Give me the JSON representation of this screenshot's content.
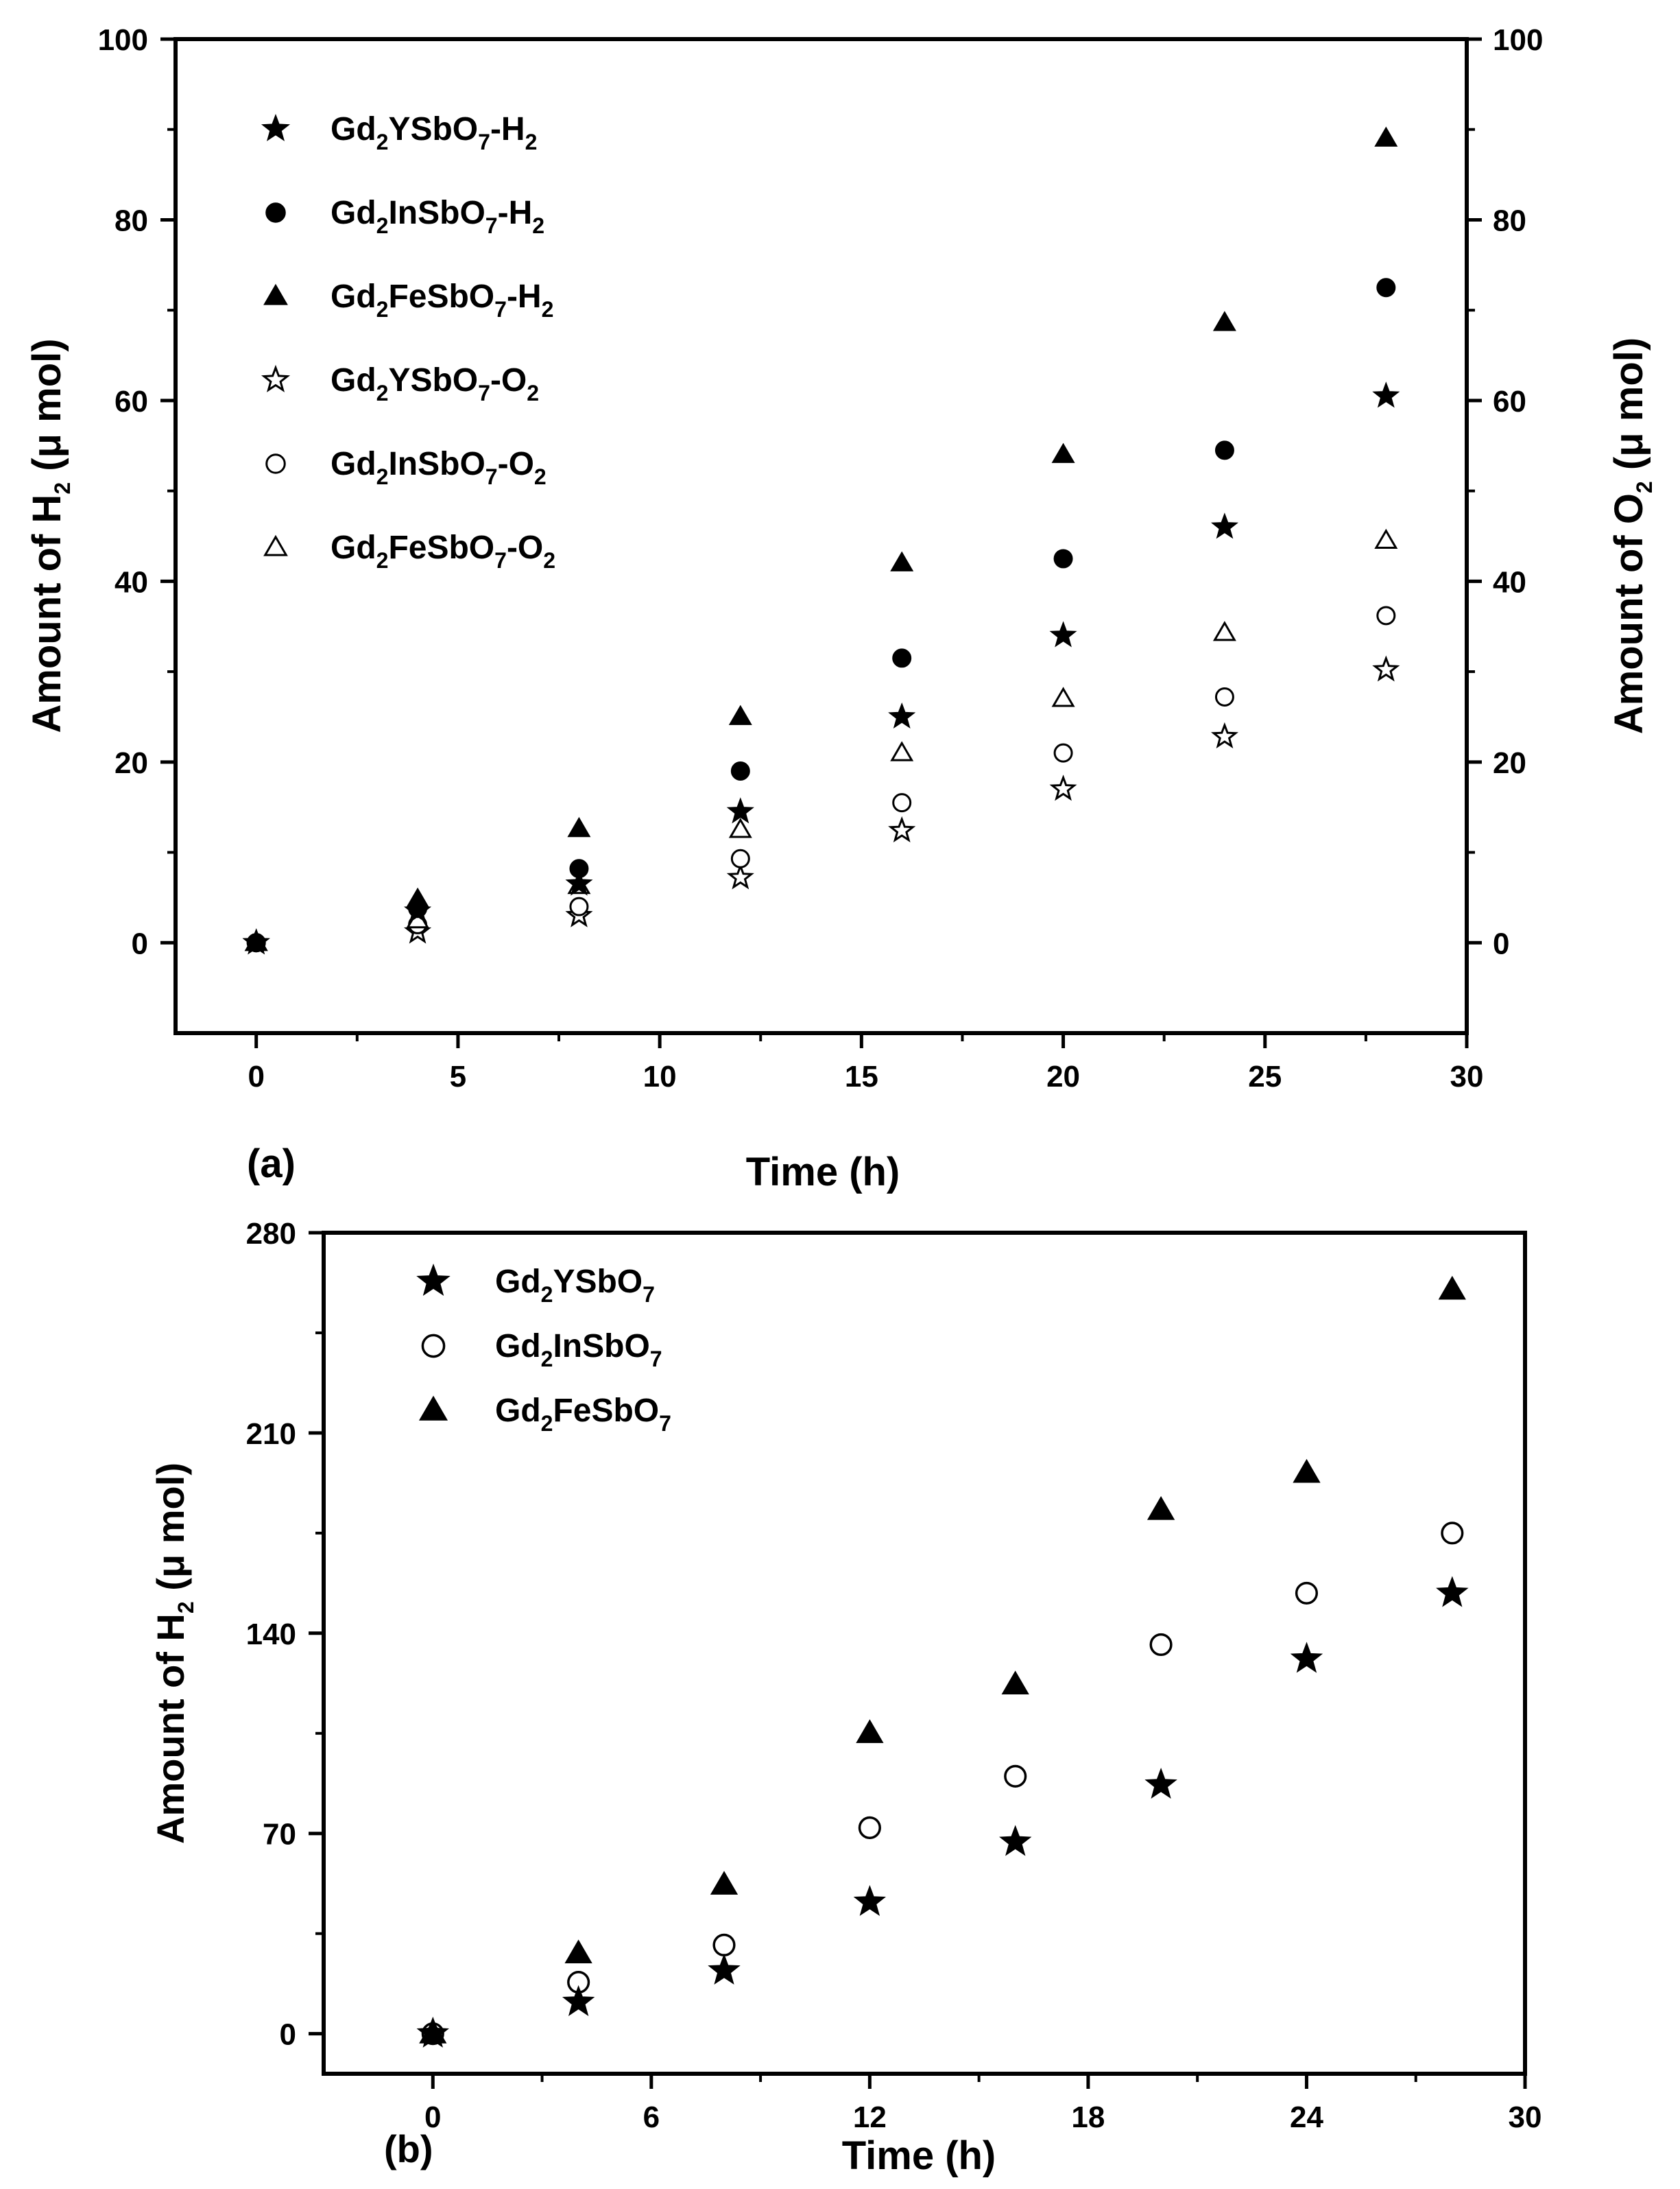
{
  "chart_data": [
    {
      "type": "scatter",
      "panel_label": "(a)",
      "xlabel": "Time (h)",
      "ylabel_left": {
        "main": "Amount of H",
        "sub": "2",
        "tail": " (μ mol)"
      },
      "ylabel_right": {
        "main": "Amount of O",
        "sub": "2",
        "tail": " (μ mol)"
      },
      "xlim": [
        -2,
        30
      ],
      "ylim": [
        -10,
        100
      ],
      "xticks": [
        0,
        5,
        10,
        15,
        20,
        25,
        30
      ],
      "yticks": [
        0,
        20,
        40,
        60,
        80,
        100
      ],
      "legend_position": "top-left",
      "series": [
        {
          "name": "Gd2YSbO7-H2",
          "label_parts": [
            [
              "Gd",
              ""
            ],
            [
              "2",
              "sub"
            ],
            [
              "YSbO",
              ""
            ],
            [
              "7",
              "sub"
            ],
            [
              "-H",
              ""
            ],
            [
              "2",
              "sub"
            ]
          ],
          "marker": "star",
          "filled": true,
          "x": [
            0,
            4,
            8,
            12,
            16,
            20,
            24,
            28
          ],
          "y": [
            0,
            3.5,
            6.5,
            14.5,
            25,
            34,
            46,
            60.5
          ]
        },
        {
          "name": "Gd2InSbO7-H2",
          "label_parts": [
            [
              "Gd",
              ""
            ],
            [
              "2",
              "sub"
            ],
            [
              "InSbO",
              ""
            ],
            [
              "7",
              "sub"
            ],
            [
              "-H",
              ""
            ],
            [
              "2",
              "sub"
            ]
          ],
          "marker": "circle",
          "filled": true,
          "x": [
            0,
            4,
            8,
            12,
            16,
            20,
            24,
            28
          ],
          "y": [
            0,
            3.8,
            8.2,
            19,
            31.5,
            42.5,
            54.5,
            72.5
          ]
        },
        {
          "name": "Gd2FeSbO7-H2",
          "label_parts": [
            [
              "Gd",
              ""
            ],
            [
              "2",
              "sub"
            ],
            [
              "FeSbO",
              ""
            ],
            [
              "7",
              "sub"
            ],
            [
              "-H",
              ""
            ],
            [
              "2",
              "sub"
            ]
          ],
          "marker": "triangle",
          "filled": true,
          "x": [
            0,
            4,
            8,
            12,
            16,
            20,
            24,
            28
          ],
          "y": [
            0,
            4.8,
            12.6,
            25,
            42,
            54,
            68.6,
            89
          ]
        },
        {
          "name": "Gd2YSbO7-O2",
          "label_parts": [
            [
              "Gd",
              ""
            ],
            [
              "2",
              "sub"
            ],
            [
              "YSbO",
              ""
            ],
            [
              "7",
              "sub"
            ],
            [
              "-O",
              ""
            ],
            [
              "2",
              "sub"
            ]
          ],
          "marker": "star",
          "filled": false,
          "x": [
            0,
            4,
            8,
            12,
            16,
            20,
            24,
            28
          ],
          "y": [
            0,
            1.2,
            3,
            7.2,
            12.4,
            17,
            22.8,
            30.2
          ]
        },
        {
          "name": "Gd2InSbO7-O2",
          "label_parts": [
            [
              "Gd",
              ""
            ],
            [
              "2",
              "sub"
            ],
            [
              "InSbO",
              ""
            ],
            [
              "7",
              "sub"
            ],
            [
              "-O",
              ""
            ],
            [
              "2",
              "sub"
            ]
          ],
          "marker": "circle",
          "filled": false,
          "x": [
            0,
            4,
            8,
            12,
            16,
            20,
            24,
            28
          ],
          "y": [
            0,
            2,
            4,
            9.3,
            15.5,
            21,
            27.2,
            36.2
          ]
        },
        {
          "name": "Gd2FeSbO7-O2",
          "label_parts": [
            [
              "Gd",
              ""
            ],
            [
              "2",
              "sub"
            ],
            [
              "FeSbO",
              ""
            ],
            [
              "7",
              "sub"
            ],
            [
              "-O",
              ""
            ],
            [
              "2",
              "sub"
            ]
          ],
          "marker": "triangle",
          "filled": false,
          "x": [
            0,
            4,
            8,
            12,
            16,
            20,
            24,
            28
          ],
          "y": [
            0,
            2.5,
            6.3,
            12.5,
            21,
            27,
            34.3,
            44.5
          ]
        }
      ]
    },
    {
      "type": "scatter",
      "panel_label": "(b)",
      "xlabel": "Time (h)",
      "ylabel_left": {
        "main": "Amount of H",
        "sub": "2",
        "tail": " (μ mol)"
      },
      "xlim": [
        -3,
        30
      ],
      "ylim": [
        -14,
        280
      ],
      "xticks": [
        0,
        6,
        12,
        18,
        24,
        30
      ],
      "yticks": [
        0,
        70,
        140,
        210,
        280
      ],
      "legend_position": "top-left",
      "series": [
        {
          "name": "Gd2YSbO7",
          "label_parts": [
            [
              "Gd",
              ""
            ],
            [
              "2",
              "sub"
            ],
            [
              "YSbO",
              ""
            ],
            [
              "7",
              "sub"
            ]
          ],
          "marker": "star",
          "filled": true,
          "x": [
            0,
            4,
            8,
            12,
            16,
            20,
            24,
            28
          ],
          "y": [
            0,
            11,
            22,
            46,
            67,
            87,
            131,
            154
          ]
        },
        {
          "name": "Gd2InSbO7",
          "label_parts": [
            [
              "Gd",
              ""
            ],
            [
              "2",
              "sub"
            ],
            [
              "InSbO",
              ""
            ],
            [
              "7",
              "sub"
            ]
          ],
          "marker": "circle",
          "filled": false,
          "x": [
            0,
            4,
            8,
            12,
            16,
            20,
            24,
            28
          ],
          "y": [
            0,
            18,
            31,
            72,
            90,
            136,
            154,
            175
          ]
        },
        {
          "name": "Gd2FeSbO7",
          "label_parts": [
            [
              "Gd",
              ""
            ],
            [
              "2",
              "sub"
            ],
            [
              "FeSbO",
              ""
            ],
            [
              "7",
              "sub"
            ]
          ],
          "marker": "triangle",
          "filled": true,
          "x": [
            0,
            4,
            8,
            12,
            16,
            20,
            24,
            28
          ],
          "y": [
            0,
            28,
            52,
            105,
            122,
            183,
            196,
            260
          ]
        }
      ]
    }
  ]
}
